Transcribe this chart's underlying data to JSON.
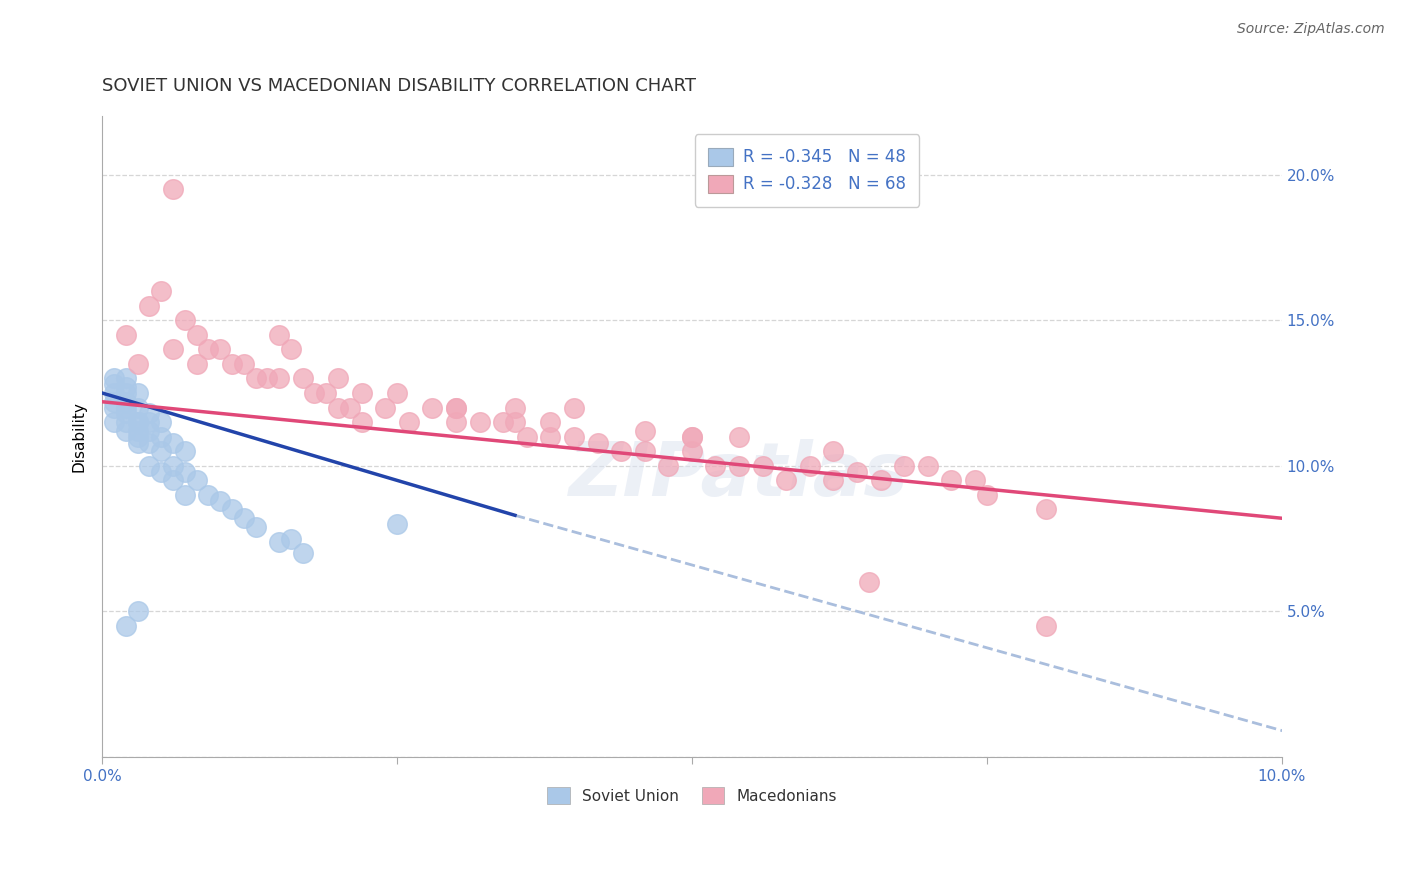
{
  "title": "SOVIET UNION VS MACEDONIAN DISABILITY CORRELATION CHART",
  "source": "Source: ZipAtlas.com",
  "ylabel": "Disability",
  "xlim": [
    0.0,
    0.1
  ],
  "ylim": [
    0.0,
    0.22
  ],
  "yticks": [
    0.0,
    0.05,
    0.1,
    0.15,
    0.2
  ],
  "ytick_labels_right": [
    "",
    "5.0%",
    "10.0%",
    "15.0%",
    "20.0%"
  ],
  "xtick_vals": [
    0.0,
    0.025,
    0.05,
    0.075,
    0.1
  ],
  "xtick_labels": [
    "0.0%",
    "",
    "",
    "",
    "10.0%"
  ],
  "legend_r_soviet": "-0.345",
  "legend_n_soviet": "48",
  "legend_r_mac": "-0.328",
  "legend_n_mac": "68",
  "soviet_color": "#aac8e8",
  "macedonian_color": "#f0a8b8",
  "soviet_line_color": "#2244aa",
  "macedonian_line_color": "#e04878",
  "dashed_line_color": "#aabedd",
  "background_color": "#ffffff",
  "watermark": "ZIPatlas",
  "tick_color": "#4472c4",
  "title_color": "#333333",
  "source_color": "#666666",
  "grid_color": "#cccccc",
  "soviet_x_data": [
    0.001,
    0.001,
    0.001,
    0.001,
    0.001,
    0.001,
    0.002,
    0.002,
    0.002,
    0.002,
    0.002,
    0.002,
    0.002,
    0.003,
    0.003,
    0.003,
    0.003,
    0.003,
    0.004,
    0.004,
    0.004,
    0.004,
    0.005,
    0.005,
    0.005,
    0.006,
    0.006,
    0.007,
    0.007,
    0.008,
    0.009,
    0.01,
    0.011,
    0.012,
    0.013,
    0.015,
    0.017,
    0.002,
    0.003,
    0.003,
    0.004,
    0.005,
    0.006,
    0.007,
    0.016,
    0.025,
    0.003,
    0.002
  ],
  "soviet_y_data": [
    0.115,
    0.12,
    0.122,
    0.125,
    0.128,
    0.13,
    0.112,
    0.115,
    0.118,
    0.12,
    0.122,
    0.125,
    0.127,
    0.11,
    0.112,
    0.115,
    0.12,
    0.125,
    0.108,
    0.112,
    0.115,
    0.118,
    0.105,
    0.11,
    0.115,
    0.1,
    0.108,
    0.098,
    0.105,
    0.095,
    0.09,
    0.088,
    0.085,
    0.082,
    0.079,
    0.074,
    0.07,
    0.13,
    0.108,
    0.115,
    0.1,
    0.098,
    0.095,
    0.09,
    0.075,
    0.08,
    0.05,
    0.045
  ],
  "mac_x_data": [
    0.002,
    0.004,
    0.005,
    0.006,
    0.007,
    0.008,
    0.009,
    0.01,
    0.011,
    0.012,
    0.013,
    0.014,
    0.015,
    0.016,
    0.017,
    0.018,
    0.019,
    0.02,
    0.021,
    0.022,
    0.024,
    0.025,
    0.026,
    0.028,
    0.03,
    0.03,
    0.032,
    0.034,
    0.035,
    0.036,
    0.038,
    0.04,
    0.04,
    0.042,
    0.044,
    0.046,
    0.048,
    0.05,
    0.05,
    0.052,
    0.054,
    0.056,
    0.058,
    0.06,
    0.062,
    0.064,
    0.066,
    0.068,
    0.07,
    0.072,
    0.074,
    0.003,
    0.008,
    0.015,
    0.022,
    0.03,
    0.038,
    0.046,
    0.054,
    0.062,
    0.075,
    0.08,
    0.006,
    0.02,
    0.035,
    0.05,
    0.065,
    0.08
  ],
  "mac_y_data": [
    0.145,
    0.155,
    0.16,
    0.195,
    0.15,
    0.145,
    0.14,
    0.14,
    0.135,
    0.135,
    0.13,
    0.13,
    0.145,
    0.14,
    0.13,
    0.125,
    0.125,
    0.13,
    0.12,
    0.115,
    0.12,
    0.125,
    0.115,
    0.12,
    0.12,
    0.115,
    0.115,
    0.115,
    0.12,
    0.11,
    0.11,
    0.11,
    0.12,
    0.108,
    0.105,
    0.105,
    0.1,
    0.11,
    0.105,
    0.1,
    0.1,
    0.1,
    0.095,
    0.1,
    0.095,
    0.098,
    0.095,
    0.1,
    0.1,
    0.095,
    0.095,
    0.135,
    0.135,
    0.13,
    0.125,
    0.12,
    0.115,
    0.112,
    0.11,
    0.105,
    0.09,
    0.085,
    0.14,
    0.12,
    0.115,
    0.11,
    0.06,
    0.045
  ],
  "soviet_line_x": [
    0.0,
    0.035
  ],
  "soviet_line_y": [
    0.125,
    0.083
  ],
  "dashed_line_x": [
    0.035,
    0.108
  ],
  "dashed_line_y": [
    0.083,
    0.0
  ],
  "mac_line_x": [
    0.0,
    0.1
  ],
  "mac_line_y": [
    0.122,
    0.082
  ]
}
